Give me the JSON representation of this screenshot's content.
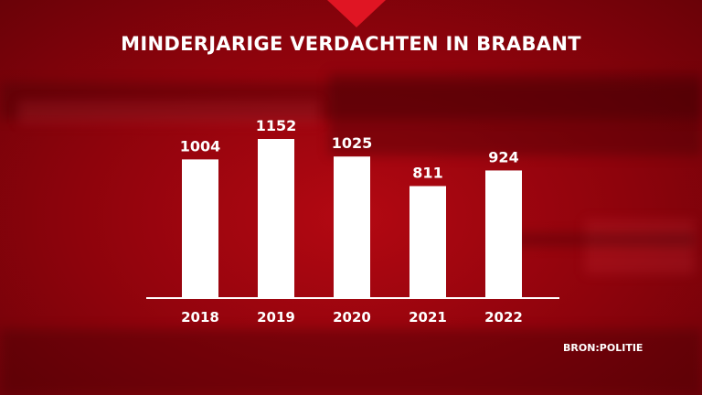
{
  "chart_data": {
    "type": "bar",
    "title": "MINDERJARIGE VERDACHTEN IN BRABANT",
    "categories": [
      "2018",
      "2019",
      "2020",
      "2021",
      "2022"
    ],
    "values": [
      1004,
      1152,
      1025,
      811,
      924
    ],
    "ylim": [
      0,
      1152
    ],
    "xlabel": "",
    "ylabel": "",
    "grid": false,
    "legend": "none",
    "source": "BRON:POLITIE"
  },
  "colors": {
    "background": "#a0050f",
    "accent": "#e01523",
    "bar": "#ffffff",
    "text": "#ffffff"
  }
}
